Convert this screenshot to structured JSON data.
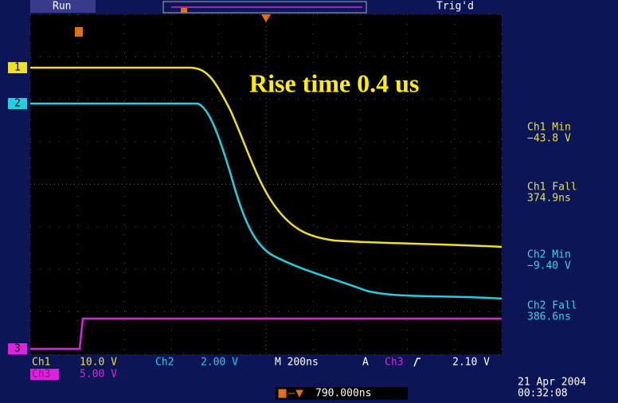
{
  "status_bar": {
    "run": "Run",
    "trigger": "Trig'd"
  },
  "annotation": "Rise time 0.4 us",
  "channel_markers": [
    "1",
    "2",
    "3"
  ],
  "measurements": [
    {
      "label": "Ch1 Min",
      "value": "−43.8 V"
    },
    {
      "label": "Ch1 Fall",
      "value": "374.9ns"
    },
    {
      "label": "Ch2 Min",
      "value": "−9.40 V"
    },
    {
      "label": "Ch2 Fall",
      "value": "386.6ns"
    }
  ],
  "settings": {
    "ch1": "Ch1",
    "ch1_scale": "10.0 V",
    "ch2": "Ch2",
    "ch2_scale": "2.00 V",
    "timebase": "M 200ns",
    "trigger_mode": "A",
    "trigger_source": "Ch3",
    "trigger_level": "2.10 V",
    "ch3": "Ch3",
    "ch3_scale": "5.00 V",
    "position": "790.000ns"
  },
  "timestamp": {
    "date": "21 Apr 2004",
    "time": "00:32:08"
  }
}
